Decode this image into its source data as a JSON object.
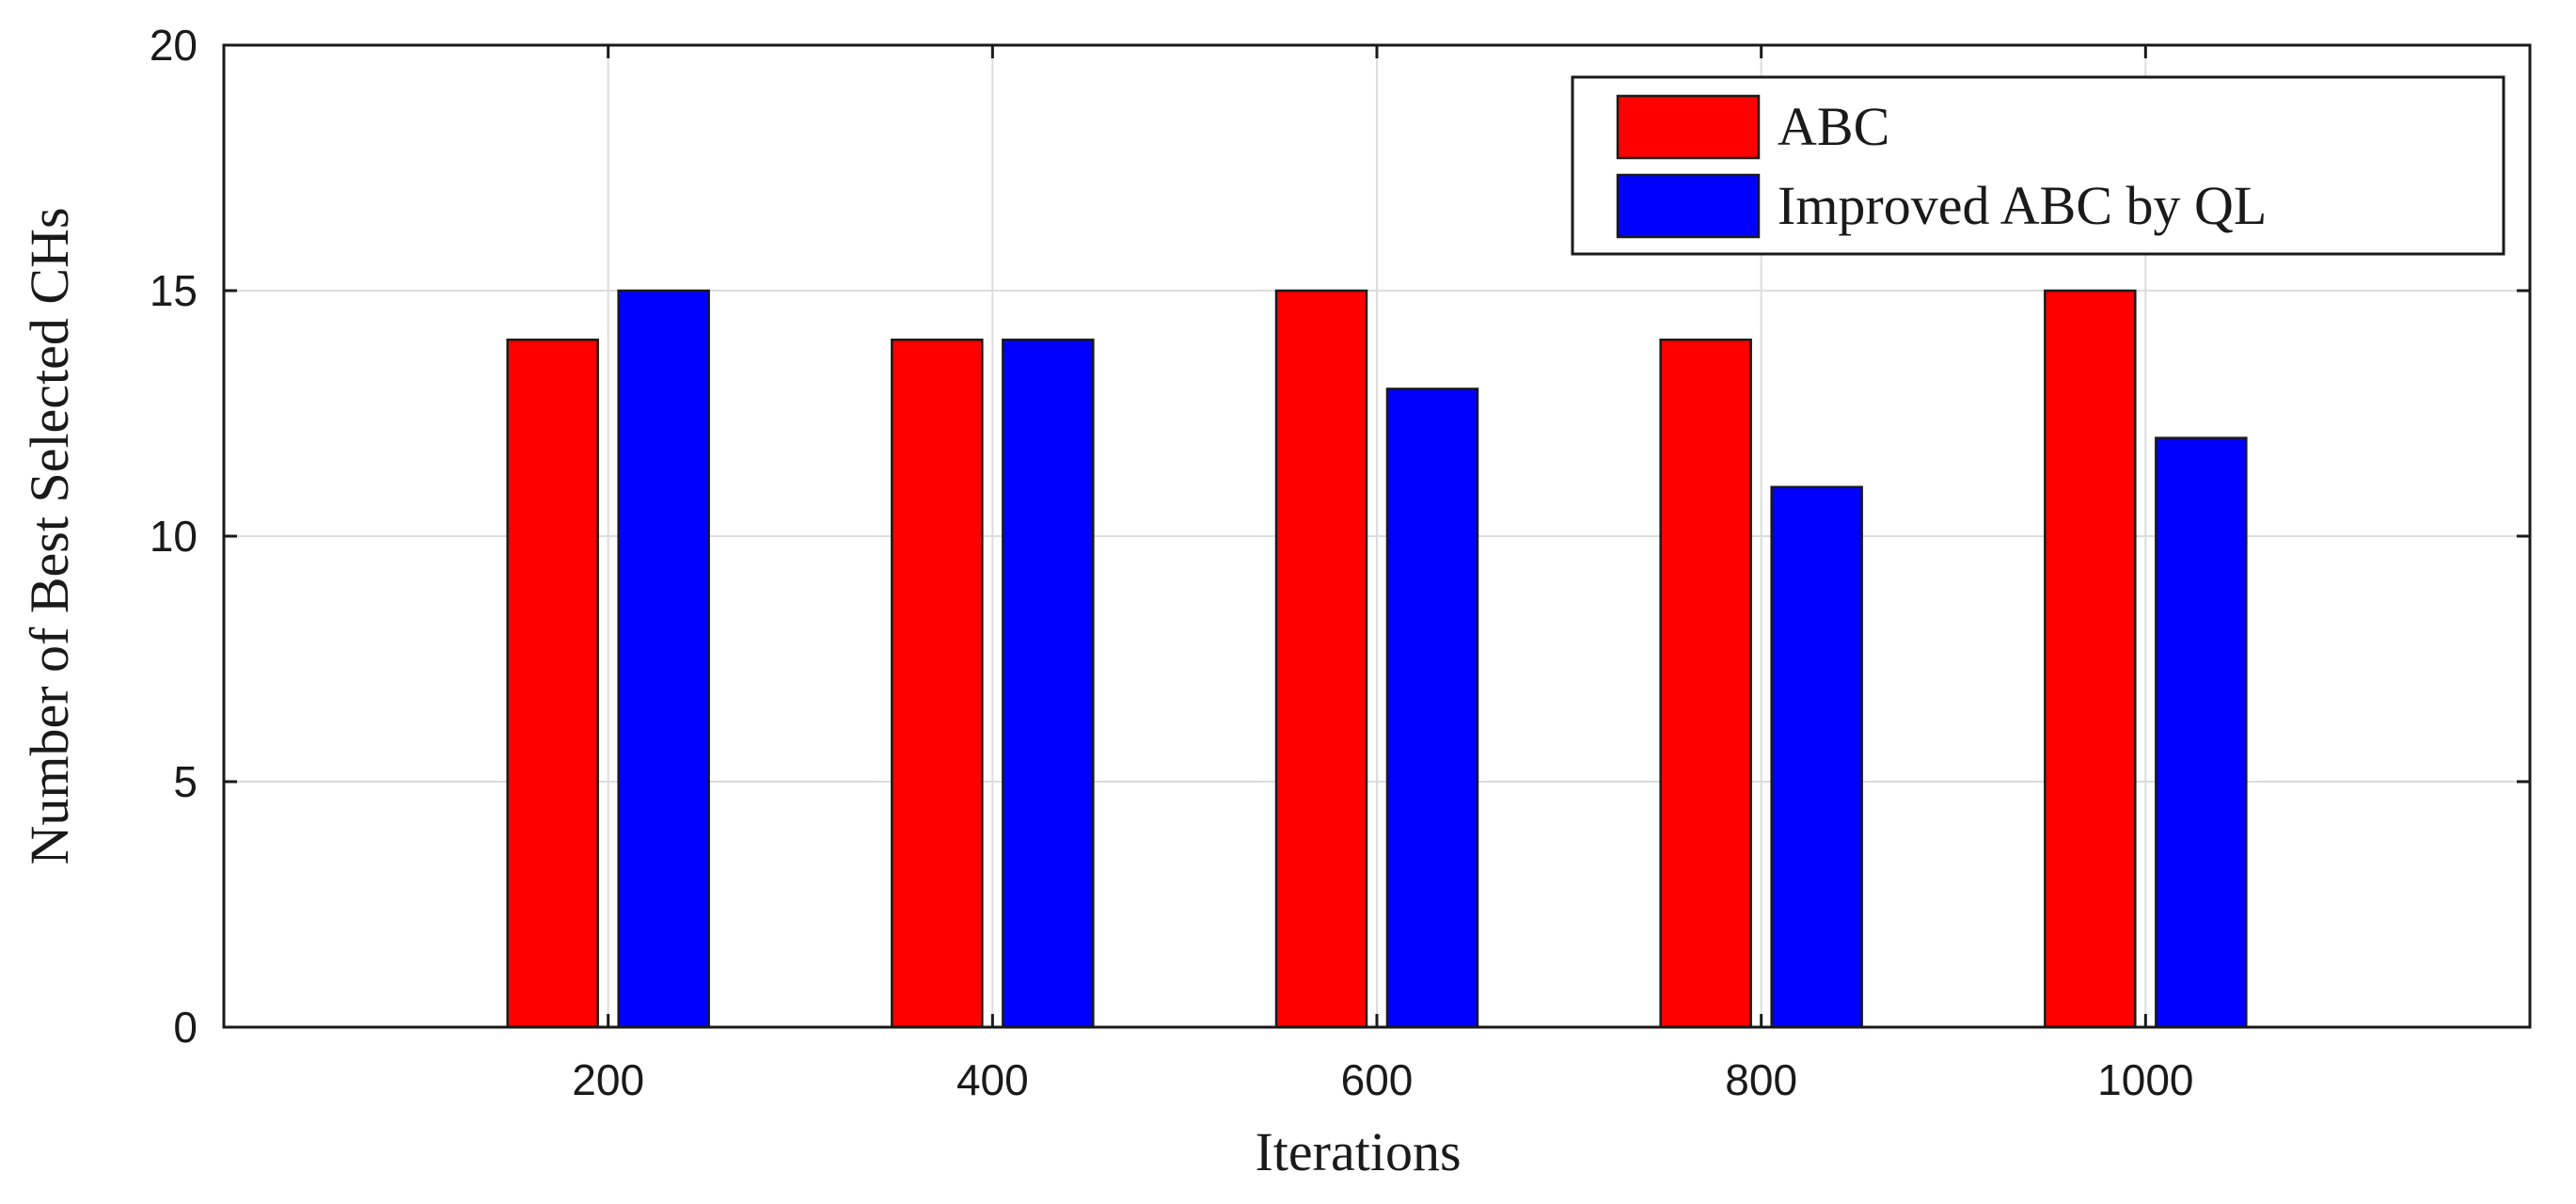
{
  "chart_data": {
    "type": "bar",
    "title": "",
    "xlabel": "Iterations",
    "ylabel": "Number of Best Selected CHs",
    "categories": [
      "200",
      "400",
      "600",
      "800",
      "1000"
    ],
    "series": [
      {
        "name": "ABC",
        "color": "#ff0000",
        "values": [
          14,
          14,
          15,
          14,
          15
        ]
      },
      {
        "name": "Improved ABC by QL",
        "color": "#0000ff",
        "values": [
          15,
          14,
          13,
          11,
          12
        ]
      }
    ],
    "ylim": [
      0,
      20
    ],
    "yticks": [
      0,
      5,
      10,
      15,
      20
    ],
    "grid": true,
    "legend_position": "top-right"
  }
}
